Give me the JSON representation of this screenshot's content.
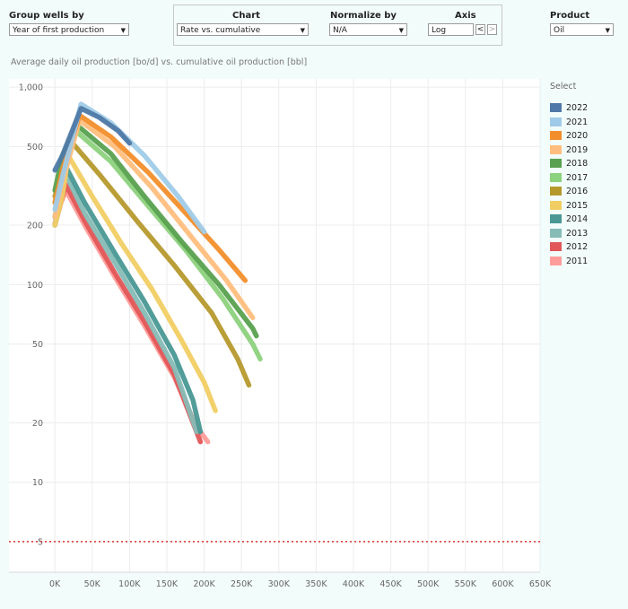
{
  "controls": {
    "group_wells_label": "Group wells by",
    "group_wells_value": "Year of first production",
    "chart_label": "Chart",
    "chart_value": "Rate vs. cumulative",
    "normalize_label": "Normalize by",
    "normalize_value": "N/A",
    "axis_label": "Axis",
    "axis_value": "Log",
    "product_label": "Product",
    "product_value": "Oil",
    "step_prev": "<",
    "step_next": ">"
  },
  "legend_title": "Select",
  "chart_data": {
    "type": "line",
    "title": "Average daily oil production [bo/d] vs. cumulative oil production [bbl]",
    "xlabel": "",
    "ylabel": "",
    "y_scale": "log",
    "xlim": [
      -5000,
      650000
    ],
    "ylim": [
      3.5,
      1100
    ],
    "grid": true,
    "x_ticks": [
      0,
      50000,
      100000,
      150000,
      200000,
      250000,
      300000,
      350000,
      400000,
      450000,
      500000,
      550000,
      600000,
      650000
    ],
    "x_tick_labels": [
      "0K",
      "50K",
      "100K",
      "150K",
      "200K",
      "250K",
      "300K",
      "350K",
      "400K",
      "450K",
      "500K",
      "550K",
      "600K",
      "650K"
    ],
    "y_ticks": [
      5,
      10,
      20,
      50,
      100,
      200,
      500,
      1000
    ],
    "y_tick_labels": [
      "5",
      "10",
      "20",
      "50",
      "100",
      "200",
      "500",
      "1,000"
    ],
    "reference_line": {
      "y": 5,
      "color": "#e03030"
    },
    "legend_position": "right",
    "series": [
      {
        "name": "2022",
        "color": "#4e79a7",
        "x": [
          0,
          10000,
          35000,
          60000,
          85000,
          100000
        ],
        "y": [
          380,
          450,
          780,
          700,
          600,
          520
        ]
      },
      {
        "name": "2021",
        "color": "#a0cbe8",
        "x": [
          0,
          10000,
          35000,
          75000,
          120000,
          165000,
          200000
        ],
        "y": [
          240,
          350,
          820,
          660,
          450,
          280,
          185
        ]
      },
      {
        "name": "2020",
        "color": "#f28e2b",
        "x": [
          0,
          10000,
          33000,
          75000,
          125000,
          180000,
          220000,
          255000
        ],
        "y": [
          260,
          380,
          720,
          560,
          370,
          220,
          150,
          105
        ]
      },
      {
        "name": "2019",
        "color": "#ffbe7d",
        "x": [
          0,
          10000,
          33000,
          80000,
          130000,
          180000,
          230000,
          265000
        ],
        "y": [
          220,
          330,
          680,
          500,
          310,
          180,
          105,
          68
        ]
      },
      {
        "name": "2018",
        "color": "#59a14f",
        "x": [
          0,
          10000,
          30000,
          75000,
          120000,
          170000,
          220000,
          265000,
          270000
        ],
        "y": [
          300,
          450,
          640,
          460,
          280,
          165,
          100,
          60,
          55
        ]
      },
      {
        "name": "2017",
        "color": "#8cd17d",
        "x": [
          0,
          10000,
          28000,
          75000,
          125000,
          175000,
          225000,
          265000,
          275000
        ],
        "y": [
          260,
          380,
          600,
          420,
          250,
          150,
          85,
          50,
          42
        ]
      },
      {
        "name": "2016",
        "color": "#b6992d",
        "x": [
          0,
          10000,
          20000,
          60000,
          110000,
          160000,
          210000,
          245000,
          260000
        ],
        "y": [
          280,
          380,
          540,
          360,
          210,
          125,
          72,
          42,
          31
        ]
      },
      {
        "name": "2015",
        "color": "#f1ce63",
        "x": [
          0,
          10000,
          18000,
          50000,
          90000,
          130000,
          170000,
          200000,
          215000
        ],
        "y": [
          200,
          280,
          450,
          280,
          160,
          95,
          52,
          32,
          23
        ]
      },
      {
        "name": "2014",
        "color": "#499894",
        "x": [
          0,
          8000,
          14000,
          40000,
          80000,
          120000,
          160000,
          185000,
          195000
        ],
        "y": [
          220,
          300,
          400,
          260,
          145,
          82,
          44,
          26,
          18
        ]
      },
      {
        "name": "2013",
        "color": "#86bcb6",
        "x": [
          0,
          8000,
          12000,
          40000,
          80000,
          120000,
          160000,
          190000
        ],
        "y": [
          200,
          280,
          380,
          230,
          130,
          72,
          38,
          18
        ]
      },
      {
        "name": "2012",
        "color": "#e15759",
        "x": [
          0,
          8000,
          15000,
          40000,
          80000,
          120000,
          160000,
          195000
        ],
        "y": [
          200,
          260,
          320,
          210,
          115,
          65,
          35,
          16
        ]
      },
      {
        "name": "2011",
        "color": "#ff9d9a",
        "x": [
          0,
          8000,
          15000,
          40000,
          80000,
          120000,
          160000,
          190000,
          205000
        ],
        "y": [
          205,
          260,
          300,
          200,
          110,
          62,
          34,
          19,
          16
        ]
      }
    ]
  }
}
